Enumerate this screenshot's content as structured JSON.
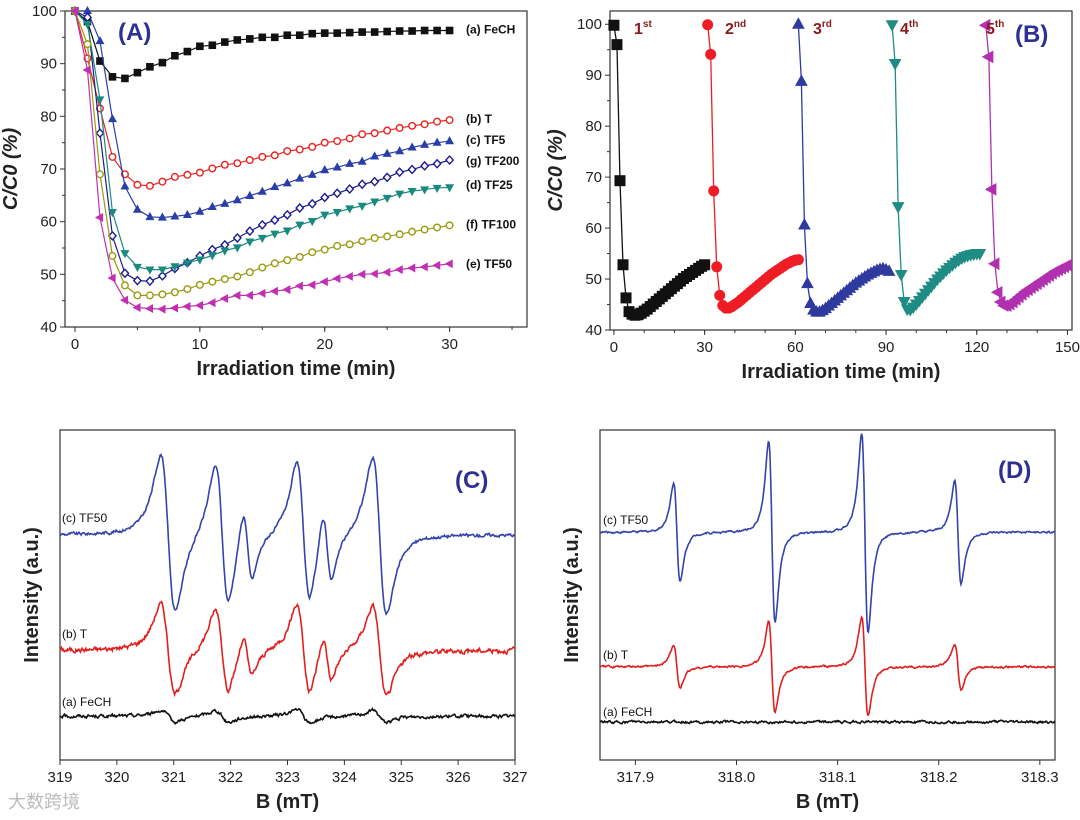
{
  "watermark": "大数跨境",
  "chart_data": [
    {
      "id": "A",
      "type": "line",
      "panel_label": "(A)",
      "xlabel": "Irradiation time (min)",
      "ylabel": "C/C0 (%)",
      "xlim": [
        -0.8,
        36.2
      ],
      "ylim": [
        40,
        100
      ],
      "xticks": [
        0,
        10,
        20,
        30
      ],
      "yticks": [
        40,
        50,
        60,
        70,
        80,
        90,
        100
      ],
      "x": [
        0,
        1,
        2,
        3,
        4,
        5,
        6,
        7,
        8,
        9,
        10,
        11,
        12,
        13,
        14,
        15,
        16,
        17,
        18,
        19,
        20,
        21,
        22,
        23,
        24,
        25,
        26,
        27,
        28,
        29,
        30
      ],
      "series": [
        {
          "name": "(a) FeCH",
          "color": "#111111",
          "marker": "square",
          "filled": true,
          "values": [
            100,
            98,
            90.5,
            87.5,
            87.2,
            88.3,
            89.4,
            90.2,
            91.5,
            92.3,
            93.3,
            93.5,
            94.1,
            94.5,
            94.7,
            95,
            95,
            95.4,
            95.4,
            95.7,
            95.8,
            95.8,
            95.9,
            96,
            96,
            96.1,
            96.2,
            96.2,
            96.3,
            96.3,
            96.3
          ]
        },
        {
          "name": "(b) T",
          "color": "#e8241f",
          "marker": "circle",
          "filled": false,
          "values": [
            100,
            91,
            81.5,
            72.3,
            69,
            67,
            66.8,
            67.6,
            68.5,
            68.9,
            69.3,
            70.1,
            70.8,
            71.1,
            71.7,
            72.3,
            72.6,
            73.4,
            73.7,
            74.2,
            75,
            75.3,
            75.8,
            76.6,
            76.8,
            77.3,
            77.8,
            78.2,
            78.5,
            79,
            79.3
          ]
        },
        {
          "name": "(c) TF5",
          "color": "#2a3ea8",
          "marker": "triangle-up",
          "filled": true,
          "values": [
            100,
            100,
            94.3,
            79.5,
            66.7,
            62.3,
            60.9,
            60.8,
            61,
            61.3,
            61.9,
            62.8,
            63.4,
            64.1,
            64.9,
            65.7,
            66.6,
            67.3,
            68.2,
            68.9,
            69.8,
            70.3,
            71,
            71.4,
            72.4,
            72.9,
            73.4,
            74.1,
            74.6,
            75,
            75.3
          ]
        },
        {
          "name": "(g) TF200",
          "color": "#1c1c8c",
          "marker": "diamond",
          "filled": false,
          "values": [
            100,
            98.8,
            76.8,
            57.3,
            50.2,
            48.8,
            48.7,
            49.7,
            51.1,
            52.2,
            53.5,
            54.7,
            55.6,
            56.9,
            58.2,
            59.4,
            60.3,
            61.3,
            62.6,
            63.4,
            64.6,
            65.4,
            66.2,
            67.1,
            67.6,
            68.4,
            69.4,
            69.9,
            70.6,
            71,
            71.7
          ]
        },
        {
          "name": "(d) TF25",
          "color": "#1a8a80",
          "marker": "triangle-down",
          "filled": true,
          "values": [
            100,
            97.5,
            83.2,
            61.8,
            54,
            51.4,
            50.9,
            50.9,
            51.5,
            52.2,
            52.8,
            53.6,
            54.5,
            55.1,
            56.2,
            56.9,
            57.7,
            58.3,
            59.4,
            60.1,
            61.3,
            61.8,
            62.5,
            63,
            63.8,
            64.5,
            65.3,
            65.8,
            66.1,
            66.4,
            66.5
          ]
        },
        {
          "name": "(f) TF100",
          "color": "#9a9a10",
          "marker": "circle",
          "filled": false,
          "values": [
            100,
            93.7,
            69,
            53.5,
            47.9,
            46,
            46,
            46.2,
            46.6,
            47.2,
            48,
            48.6,
            49.1,
            49.6,
            50.4,
            51.3,
            52.1,
            52.7,
            53.3,
            54.2,
            54.7,
            55.4,
            55.7,
            56.3,
            56.9,
            57.2,
            57.6,
            58.1,
            58.5,
            58.9,
            59.3
          ]
        },
        {
          "name": "(e) TF50",
          "color": "#c030b0",
          "marker": "triangle-left",
          "filled": true,
          "values": [
            100,
            88.8,
            60.8,
            49.3,
            45.1,
            43.7,
            43.5,
            43.4,
            43.6,
            43.9,
            44.1,
            44.6,
            45.4,
            46,
            46,
            46.4,
            46.8,
            47.1,
            47.8,
            48,
            48.6,
            49.2,
            49.6,
            50,
            50.1,
            50.4,
            50.9,
            51.2,
            51.4,
            51.7,
            52
          ]
        }
      ]
    },
    {
      "id": "B",
      "type": "line",
      "panel_label": "(B)",
      "xlabel": "Irradiation time (min)",
      "ylabel": "C/C0 (%)",
      "xlim": [
        -1.3,
        151.5
      ],
      "ylim": [
        40,
        102.6
      ],
      "xticks": [
        0,
        30,
        60,
        90,
        120,
        150
      ],
      "yticks": [
        40,
        50,
        60,
        70,
        80,
        90,
        100
      ],
      "series": [
        {
          "name": "1st",
          "label_num": "1",
          "label_sup": "st",
          "x_start": 0,
          "color": "#111111",
          "marker": "square",
          "values": [
            99.8,
            96,
            69.3,
            52.8,
            46.3,
            43.6,
            43.1,
            42.9,
            43,
            43.3,
            43.7,
            44.1,
            44.6,
            45.1,
            45.6,
            46.1,
            46.6,
            47.1,
            47.6,
            48.1,
            48.6,
            49.1,
            49.6,
            50.1,
            50.5,
            50.9,
            51.3,
            51.7,
            52.1,
            52.5,
            52.8
          ]
        },
        {
          "name": "2nd",
          "label_num": "2",
          "label_sup": "nd",
          "x_start": 31,
          "color": "#ee1c24",
          "marker": "circle",
          "values": [
            99.9,
            94.1,
            67.3,
            52.4,
            46.8,
            44.8,
            44.3,
            44.3,
            44.6,
            45,
            45.4,
            45.9,
            46.4,
            46.9,
            47.4,
            47.9,
            48.4,
            48.9,
            49.4,
            49.9,
            50.4,
            50.9,
            51.3,
            51.7,
            52.1,
            52.5,
            52.9,
            53.2,
            53.5,
            53.7,
            53.8
          ]
        },
        {
          "name": "3rd",
          "label_num": "3",
          "label_sup": "rd",
          "x_start": 61,
          "color": "#2e3a9e",
          "marker": "triangle-up",
          "values": [
            100,
            88.8,
            60.6,
            49.1,
            45.2,
            43.9,
            43.5,
            43.5,
            43.8,
            44.2,
            44.7,
            45.2,
            45.7,
            46.2,
            46.7,
            47.2,
            47.7,
            48.2,
            48.7,
            49.2,
            49.6,
            50,
            50.4,
            50.8,
            51.1,
            51.4,
            51.7,
            51.9,
            52,
            51.8,
            51.5
          ]
        },
        {
          "name": "4th",
          "label_num": "4",
          "label_sup": "th",
          "x_start": 92,
          "color": "#1e8c84",
          "marker": "triangle-down",
          "values": [
            99.9,
            92.3,
            64.2,
            50.9,
            45.6,
            44.1,
            44,
            44.5,
            45.1,
            45.8,
            46.5,
            47.2,
            47.9,
            48.6,
            49.3,
            50,
            50.6,
            51.2,
            51.8,
            52.3,
            52.8,
            53.3,
            53.7,
            54.1,
            54.4,
            54.6,
            54.8,
            54.9,
            55,
            55
          ]
        },
        {
          "name": "5th",
          "label_num": "5",
          "label_sup": "th",
          "x_start": 123,
          "color": "#b030b0",
          "marker": "triangle-left",
          "values": [
            99.8,
            93.6,
            67.6,
            53,
            47.4,
            45.5,
            44.8,
            44.8,
            45.1,
            45.5,
            46,
            46.5,
            47,
            47.5,
            47.9,
            48.3,
            48.7,
            49.1,
            49.5,
            49.9,
            50.3,
            50.7,
            51.1,
            51.5,
            51.8,
            52.1,
            52.4,
            52.7
          ]
        }
      ]
    },
    {
      "id": "C",
      "type": "line",
      "panel_label": "(C)",
      "xlabel": "B (mT)",
      "ylabel": "Intensity (a.u.)",
      "xlim": [
        319,
        327
      ],
      "ylim": [
        0,
        4
      ],
      "xticks": [
        319,
        320,
        321,
        322,
        323,
        324,
        325,
        326,
        327
      ],
      "series": [
        {
          "name": "(c) TF50",
          "color": "#3344aa",
          "offset": 2.73,
          "noise": 0.02,
          "lines": [
            {
              "center": 320.9,
              "width": 0.22,
              "amp": 0.95
            },
            {
              "center": 321.85,
              "width": 0.2,
              "amp": 0.85
            },
            {
              "center": 322.3,
              "width": 0.14,
              "amp": 0.45
            },
            {
              "center": 323.28,
              "width": 0.2,
              "amp": 0.85
            },
            {
              "center": 323.7,
              "width": 0.14,
              "amp": 0.45
            },
            {
              "center": 324.62,
              "width": 0.21,
              "amp": 0.95
            }
          ]
        },
        {
          "name": "(b) T",
          "color": "#e02020",
          "offset": 1.33,
          "noise": 0.03,
          "lines": [
            {
              "center": 320.9,
              "width": 0.22,
              "amp": 0.55
            },
            {
              "center": 321.85,
              "width": 0.2,
              "amp": 0.5
            },
            {
              "center": 322.3,
              "width": 0.14,
              "amp": 0.25
            },
            {
              "center": 323.28,
              "width": 0.2,
              "amp": 0.55
            },
            {
              "center": 323.7,
              "width": 0.14,
              "amp": 0.28
            },
            {
              "center": 324.62,
              "width": 0.21,
              "amp": 0.55
            }
          ]
        },
        {
          "name": "(a) FeCH",
          "color": "#111111",
          "offset": 0.53,
          "noise": 0.02,
          "lines": [
            {
              "center": 320.9,
              "width": 0.22,
              "amp": 0.07
            },
            {
              "center": 321.85,
              "width": 0.2,
              "amp": 0.07
            },
            {
              "center": 323.28,
              "width": 0.2,
              "amp": 0.08
            },
            {
              "center": 324.62,
              "width": 0.21,
              "amp": 0.07
            }
          ]
        }
      ]
    },
    {
      "id": "D",
      "type": "line",
      "panel_label": "(D)",
      "xlabel": "B (mT)",
      "ylabel": "Intensity (a.u.)",
      "xlim": [
        317.865,
        318.315
      ],
      "ylim": [
        0,
        4
      ],
      "xticks": [
        317.9,
        318.0,
        318.1,
        318.2,
        318.3
      ],
      "series": [
        {
          "name": "(c) TF50",
          "color": "#3344aa",
          "offset": 2.76,
          "noise": 0.012,
          "lines": [
            {
              "center": 317.941,
              "width": 0.0055,
              "amp": 0.6
            },
            {
              "center": 318.035,
              "width": 0.0055,
              "amp": 1.1
            },
            {
              "center": 318.127,
              "width": 0.0055,
              "amp": 1.2
            },
            {
              "center": 318.219,
              "width": 0.0055,
              "amp": 0.62
            }
          ]
        },
        {
          "name": "(b) T",
          "color": "#e02020",
          "offset": 1.13,
          "noise": 0.012,
          "lines": [
            {
              "center": 317.941,
              "width": 0.0055,
              "amp": 0.26
            },
            {
              "center": 318.035,
              "width": 0.0055,
              "amp": 0.55
            },
            {
              "center": 318.127,
              "width": 0.0055,
              "amp": 0.6
            },
            {
              "center": 318.219,
              "width": 0.0055,
              "amp": 0.28
            }
          ]
        },
        {
          "name": "(a) FeCH",
          "color": "#111111",
          "offset": 0.46,
          "noise": 0.015,
          "lines": []
        }
      ]
    }
  ]
}
